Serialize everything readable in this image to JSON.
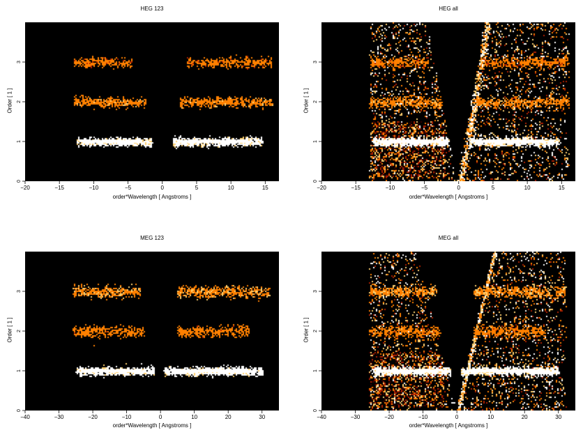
{
  "chart_data": [
    {
      "type": "heatmap",
      "title": "HEG 123",
      "xlabel": "order*Wavelength [ Angstroms ]",
      "ylabel": "Order [ 1 ]",
      "xlim": [
        -20,
        17
      ],
      "ylim": [
        0,
        4
      ],
      "xticks": [
        -20,
        -15,
        -10,
        -5,
        0,
        5,
        10,
        15
      ],
      "xtick_labels": [
        "−20",
        "−15",
        "−10",
        "−5",
        "0",
        "5",
        "10",
        "15"
      ],
      "yticks": [
        0,
        1,
        2,
        3
      ],
      "ytick_labels": [
        "0",
        "1",
        "2",
        "3"
      ],
      "background": "#000000",
      "colormap": [
        "#3a0000",
        "#b02000",
        "#ff8000",
        "#ffd070",
        "#ffffff"
      ],
      "mode": "orders",
      "bands": [
        {
          "order": 1,
          "x_ranges": [
            [
              -12.5,
              -1.5
            ],
            [
              1.5,
              14.5
            ]
          ],
          "intensity": 1.0,
          "spread": 0.05
        },
        {
          "order": 2,
          "x_ranges": [
            [
              -13,
              -2.5
            ],
            [
              2.5,
              16
            ]
          ],
          "intensity": 0.45,
          "spread": 0.06
        },
        {
          "order": 3,
          "x_ranges": [
            [
              -13,
              -4.5
            ],
            [
              3.5,
              16
            ]
          ],
          "intensity": 0.35,
          "spread": 0.06
        }
      ]
    },
    {
      "type": "heatmap",
      "title": "HEG all",
      "xlabel": "order*Wavelength [ Angstroms ]",
      "ylabel": "Order [ 1 ]",
      "xlim": [
        -20,
        17
      ],
      "ylim": [
        0,
        4
      ],
      "xticks": [
        -20,
        -15,
        -10,
        -5,
        0,
        5,
        10,
        15
      ],
      "xtick_labels": [
        "−20",
        "−15",
        "−10",
        "−5",
        "0",
        "5",
        "10",
        "15"
      ],
      "yticks": [
        0,
        1,
        2,
        3
      ],
      "ytick_labels": [
        "0",
        "1",
        "2",
        "3"
      ],
      "background": "#000000",
      "colormap": [
        "#3a0000",
        "#b02000",
        "#ff8000",
        "#ffd070",
        "#ffffff"
      ],
      "mode": "all",
      "scatter_region": {
        "x_left": -13,
        "x_right": 16,
        "wedge_slope": 0.12
      },
      "bands": [
        {
          "order": 1,
          "x_ranges": [
            [
              -12.5,
              -1.5
            ],
            [
              1.5,
              14.5
            ]
          ],
          "intensity": 1.0,
          "spread": 0.05
        },
        {
          "order": 2,
          "x_ranges": [
            [
              -13,
              -2.5
            ],
            [
              2.5,
              16
            ]
          ],
          "intensity": 0.45,
          "spread": 0.06
        },
        {
          "order": 3,
          "x_ranges": [
            [
              -13,
              -4.5
            ],
            [
              3.5,
              16
            ]
          ],
          "intensity": 0.35,
          "spread": 0.06
        }
      ]
    },
    {
      "type": "heatmap",
      "title": "MEG 123",
      "xlabel": "order*Wavelength [ Angstroms ]",
      "ylabel": "Order [ 1 ]",
      "xlim": [
        -40,
        35
      ],
      "ylim": [
        0,
        4
      ],
      "xticks": [
        -40,
        -30,
        -20,
        -10,
        0,
        10,
        20,
        30
      ],
      "xtick_labels": [
        "−40",
        "−30",
        "−20",
        "−10",
        "0",
        "10",
        "20",
        "30"
      ],
      "yticks": [
        0,
        1,
        2,
        3
      ],
      "ytick_labels": [
        "0",
        "1",
        "2",
        "3"
      ],
      "background": "#000000",
      "colormap": [
        "#3a0000",
        "#b02000",
        "#ff8000",
        "#ffd070",
        "#ffffff"
      ],
      "mode": "orders",
      "bands": [
        {
          "order": 1,
          "x_ranges": [
            [
              -25,
              -2
            ],
            [
              1,
              30
            ]
          ],
          "intensity": 1.0,
          "spread": 0.05
        },
        {
          "order": 2,
          "x_ranges": [
            [
              -26,
              -5
            ],
            [
              5,
              26
            ]
          ],
          "intensity": 0.4,
          "spread": 0.07
        },
        {
          "order": 3,
          "x_ranges": [
            [
              -26,
              -6
            ],
            [
              5,
              32
            ]
          ],
          "intensity": 0.5,
          "spread": 0.07
        }
      ]
    },
    {
      "type": "heatmap",
      "title": "MEG all",
      "xlabel": "order*Wavelength [ Angstroms ]",
      "ylabel": "Order [ 1 ]",
      "xlim": [
        -40,
        35
      ],
      "ylim": [
        0,
        4
      ],
      "xticks": [
        -40,
        -30,
        -20,
        -10,
        0,
        10,
        20,
        30
      ],
      "xtick_labels": [
        "−40",
        "−30",
        "−20",
        "−10",
        "0",
        "10",
        "20",
        "30"
      ],
      "yticks": [
        0,
        1,
        2,
        3
      ],
      "ytick_labels": [
        "0",
        "1",
        "2",
        "3"
      ],
      "background": "#000000",
      "colormap": [
        "#3a0000",
        "#b02000",
        "#ff8000",
        "#ffd070",
        "#ffffff"
      ],
      "mode": "all",
      "scatter_region": {
        "x_left": -26,
        "x_right": 32,
        "wedge_slope": 0.16
      },
      "bands": [
        {
          "order": 1,
          "x_ranges": [
            [
              -25,
              -2
            ],
            [
              1,
              30
            ]
          ],
          "intensity": 1.0,
          "spread": 0.05
        },
        {
          "order": 2,
          "x_ranges": [
            [
              -26,
              -5
            ],
            [
              5,
              26
            ]
          ],
          "intensity": 0.4,
          "spread": 0.07
        },
        {
          "order": 3,
          "x_ranges": [
            [
              -26,
              -6
            ],
            [
              5,
              32
            ]
          ],
          "intensity": 0.5,
          "spread": 0.07
        }
      ]
    }
  ]
}
